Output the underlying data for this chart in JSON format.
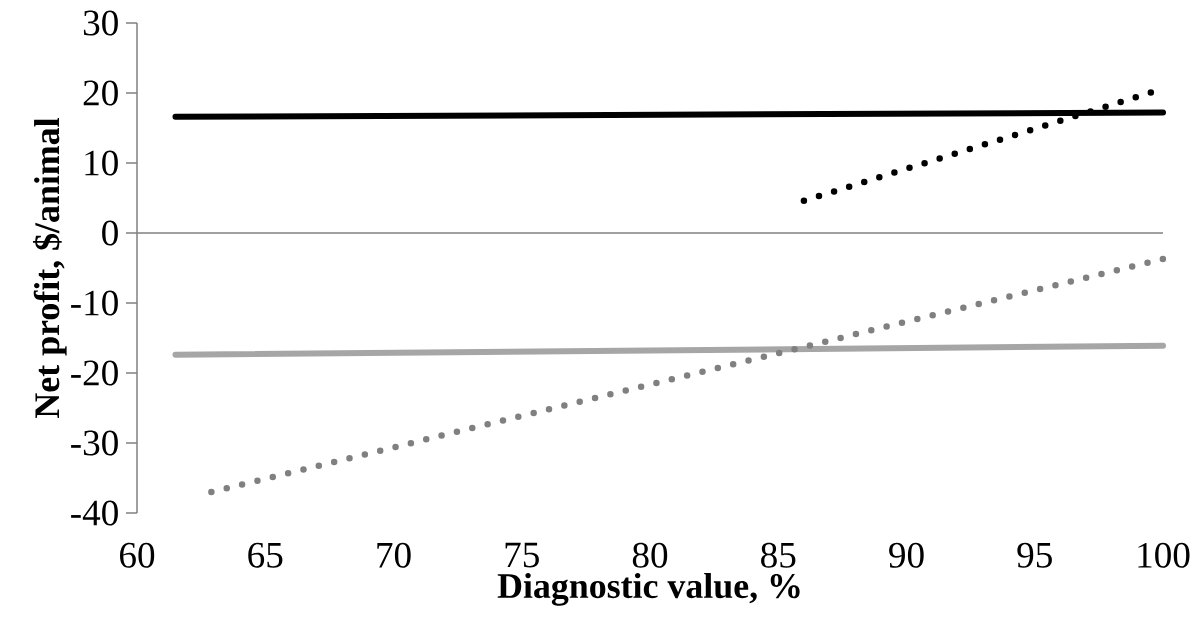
{
  "chart_data": {
    "type": "line",
    "xlabel": "Diagnostic value, %",
    "ylabel": "Net profit, $/animal",
    "xlim": [
      60,
      100
    ],
    "xticks": [
      60,
      65,
      70,
      75,
      80,
      85,
      90,
      95,
      100
    ],
    "ylim": [
      -40,
      30
    ],
    "yticks": [
      -40,
      -30,
      -20,
      -10,
      0,
      10,
      20,
      30
    ],
    "series": [
      {
        "color": "#000000",
        "line_style": "solid",
        "x": [
          61.5,
          100
        ],
        "values": [
          16.6,
          17.2
        ]
      },
      {
        "color": "#a6a6a6",
        "line_style": "solid",
        "x": [
          61.5,
          100
        ],
        "values": [
          -17.4,
          -16.1
        ]
      },
      {
        "color": "#000000",
        "line_style": "dotted",
        "x": [
          86.0,
          100
        ],
        "values": [
          4.6,
          20.6
        ]
      },
      {
        "color": "#808080",
        "line_style": "dotted",
        "x": [
          62.9,
          100
        ],
        "values": [
          -37.0,
          -3.7
        ]
      }
    ]
  }
}
